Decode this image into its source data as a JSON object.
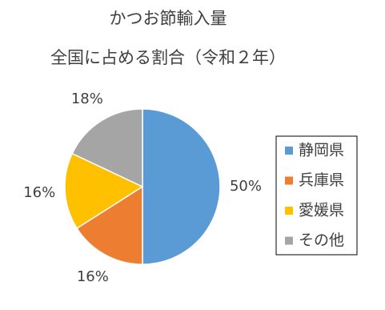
{
  "chart_data": {
    "type": "pie",
    "title": "かつお節輸入量",
    "subtitle": "全国に占める割合（令和２年）",
    "categories": [
      "静岡県",
      "兵庫県",
      "愛媛県",
      "その他"
    ],
    "values": [
      50,
      16,
      16,
      18
    ],
    "value_labels": [
      "50%",
      "16%",
      "16%",
      "18%"
    ],
    "colors": [
      "#5b9bd5",
      "#ed7d31",
      "#ffc000",
      "#a5a5a5"
    ],
    "legend": "right"
  }
}
